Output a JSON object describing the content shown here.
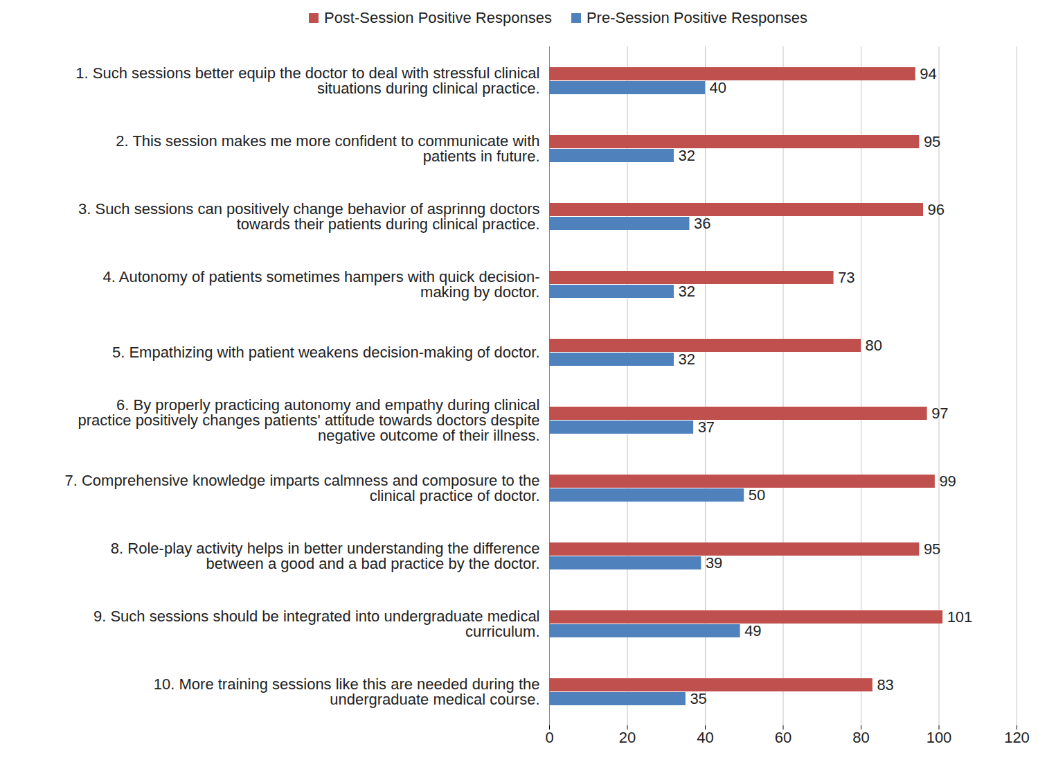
{
  "chart_data": {
    "type": "bar",
    "orientation": "horizontal",
    "categories": [
      "1. Such sessions better equip the doctor to deal with stressful clinical situations during clinical practice.",
      "2. This session makes me more confident to communicate with patients in future.",
      "3. Such sessions can positively change behavior of asprinng doctors towards their patients during clinical practice.",
      "4. Autonomy of patients sometimes hampers with quick decision-making by doctor.",
      "5. Empathizing with patient weakens decision-making of doctor.",
      "6. By properly practicing autonomy and empathy during clinical practice positively changes patients' attitude towards doctors despite negative outcome of their illness.",
      "7. Comprehensive knowledge imparts calmness and composure to the clinical practice of doctor.",
      "8. Role-play activity helps in better understanding the difference between a good and a bad practice by the doctor.",
      "9. Such sessions should be integrated into undergraduate medical curriculum.",
      "10. More training sessions like this are needed during the undergraduate medical course."
    ],
    "series": [
      {
        "name": "Post-Session Positive Responses",
        "color": "#c0504d",
        "values": [
          94,
          95,
          96,
          73,
          80,
          97,
          99,
          95,
          101,
          83
        ]
      },
      {
        "name": "Pre-Session Positive Responses",
        "color": "#4f81bd",
        "values": [
          40,
          32,
          36,
          32,
          32,
          37,
          50,
          39,
          49,
          35
        ]
      }
    ],
    "xlim": [
      0,
      120
    ],
    "xticks": [
      0,
      20,
      40,
      60,
      80,
      100,
      120
    ],
    "grid": true,
    "legend": "top",
    "data_labels": true
  }
}
